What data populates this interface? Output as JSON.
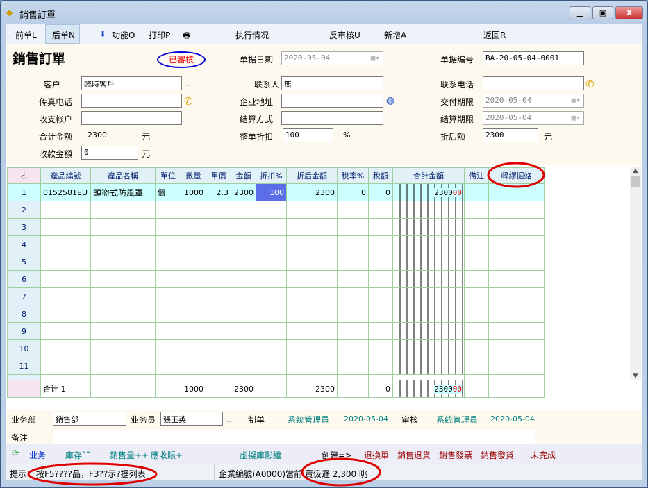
{
  "window": {
    "title": "銷售訂單",
    "controls": [
      "minimize",
      "maximize",
      "close"
    ]
  },
  "toolbar": {
    "prev": "前单L",
    "next": "后单N",
    "func": "功能O",
    "print": "打印P",
    "exec": "执行情况",
    "unaudit": "反审核U",
    "new": "新增A",
    "back": "返回R"
  },
  "form": {
    "heading": "銷售訂單",
    "status_stamp": "已審核",
    "date_label": "单据日期",
    "date": "2020-05-04",
    "docno_label": "单据编号",
    "docno": "BA-20-05-04-0001",
    "customer_label": "客户",
    "customer": "臨時客戶",
    "contact_label": "联系人",
    "contact": "無",
    "phone_label": "联系电话",
    "phone": "",
    "fax_label": "传真电话",
    "fax": "",
    "address_label": "企业地址",
    "address": "",
    "delivery_label": "交付期限",
    "delivery": "2020-05-04",
    "account_label": "收支帐户",
    "account": "",
    "settle_method_label": "结算方式",
    "settle_method": "",
    "settle_date_label": "结算期限",
    "settle_date": "2020-05-04",
    "total_label": "合计金额",
    "total": "2300",
    "yuan": "元",
    "discount_label": "整单折扣",
    "discount": "100",
    "percent": "%",
    "after_label": "折后额",
    "after": "2300",
    "received_label": "收款金額",
    "received": "0"
  },
  "grid": {
    "columns": [
      "ㄜ",
      "產品編號",
      "產品名稱",
      "單位",
      "數量",
      "單價",
      "金額",
      "折扣%",
      "折后金額",
      "稅率%",
      "稅額",
      "合計金額",
      "備注",
      "峄繆掘蛒"
    ],
    "rows": [
      {
        "no": "1",
        "code": "0152581EU",
        "name": "頭盜式防風罩",
        "unit": "個",
        "qty": "1000",
        "price": "2.3",
        "amount": "2300",
        "disc": "100",
        "after": "2300",
        "taxrate": "0",
        "tax": "0",
        "total_digits": [
          "2",
          "3",
          "0",
          "0",
          "0",
          "0"
        ]
      }
    ],
    "empty_rows": [
      "2",
      "3",
      "4",
      "5",
      "6",
      "7",
      "8",
      "9",
      "10",
      "11"
    ],
    "footer": {
      "label": "合计 1",
      "qty": "1000",
      "amount": "2300",
      "after": "2300",
      "tax": "0",
      "total_digits": [
        "2",
        "3",
        "0",
        "0",
        "0",
        "0"
      ]
    }
  },
  "bottom": {
    "dept_label": "业务部",
    "dept": "銷售部",
    "staff_label": "业务员",
    "staff": "張玉英",
    "maker_label": "制单",
    "maker": "系統管理員",
    "make_date": "2020-05-04",
    "auditor_label": "审核",
    "auditor": "系統管理員",
    "audit_date": "2020-05-04",
    "remark_label": "备注",
    "remark": ""
  },
  "links": {
    "business": "业务",
    "stock": "庫存˜˜",
    "sales_qty": "銷售量++",
    "receivable": "應收賬+",
    "virtual": "虛擬庫影繼",
    "create": "创建=>",
    "exchange": "退換單",
    "sales_return": "銷售退貨",
    "invoice": "銷售發票",
    "ship": "銷售發貨",
    "unfinished": "未完成"
  },
  "status": {
    "hint_label": "提示",
    "hint": "按F5????品，F3??示?据列表",
    "company": "企業編號(A0000)當前 賣伋遜 2,300 晀"
  },
  "colors": {
    "annotation": "#e00000",
    "stamp": "#0000dd",
    "selected_cell": "#5b6ee8"
  }
}
